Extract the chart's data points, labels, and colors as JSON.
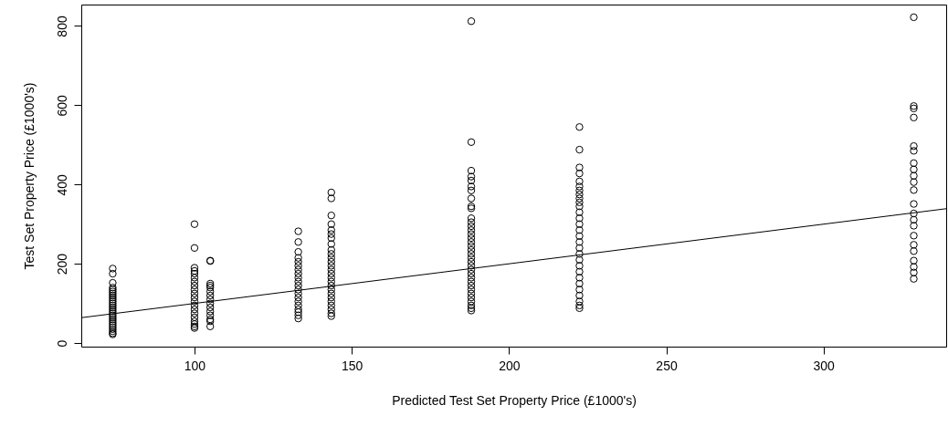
{
  "chart_data": {
    "type": "scatter",
    "xlabel": "Predicted Test Set Property Price (£1000's)",
    "ylabel": "Test Set Property Price (£1000's)",
    "xlim": [
      64,
      339
    ],
    "ylim": [
      -9,
      854
    ],
    "xticks": [
      100,
      150,
      200,
      250,
      300
    ],
    "yticks": [
      0,
      200,
      400,
      600,
      800
    ],
    "marker": "circle",
    "series": [
      {
        "color": "#000000",
        "x": [
          74,
          74,
          74,
          74,
          74,
          74,
          74,
          74,
          74,
          74,
          74,
          74,
          74,
          74,
          74,
          74,
          74,
          74,
          74,
          74,
          74,
          74,
          74,
          74,
          74,
          74,
          74,
          74,
          100,
          100,
          100,
          100,
          100,
          100,
          100,
          100,
          100,
          100,
          100,
          100,
          100,
          100,
          100,
          100,
          100,
          100,
          100,
          100,
          105,
          105,
          105,
          105,
          105,
          105,
          105,
          105,
          105,
          105,
          105,
          105,
          105,
          105,
          105,
          133,
          133,
          133,
          133,
          133,
          133,
          133,
          133,
          133,
          133,
          133,
          133,
          133,
          133,
          133,
          133,
          133,
          133,
          133,
          133,
          143.5,
          143.5,
          143.5,
          143.5,
          143.5,
          143.5,
          143.5,
          143.5,
          143.5,
          143.5,
          143.5,
          143.5,
          143.5,
          143.5,
          143.5,
          143.5,
          143.5,
          143.5,
          143.5,
          143.5,
          143.5,
          143.5,
          143.5,
          143.5,
          143.5,
          143.5,
          188,
          188,
          188,
          188,
          188,
          188,
          188,
          188,
          188,
          188,
          188,
          188,
          188,
          188,
          188,
          188,
          188,
          188,
          188,
          188,
          188,
          188,
          188,
          188,
          188,
          188,
          188,
          188,
          188,
          188,
          188,
          188,
          188,
          188,
          188,
          222.4,
          222.4,
          222.4,
          222.4,
          222.4,
          222.4,
          222.4,
          222.4,
          222.4,
          222.4,
          222.4,
          222.4,
          222.4,
          222.4,
          222.4,
          222.4,
          222.4,
          222.4,
          222.4,
          222.4,
          222.4,
          222.4,
          222.4,
          222.4,
          222.4,
          222.4,
          222.4,
          222.4,
          222.4,
          328.7,
          328.7,
          328.7,
          328.7,
          328.7,
          328.7,
          328.7,
          328.7,
          328.7,
          328.7,
          328.7,
          328.7,
          328.7,
          328.7,
          328.7,
          328.7,
          328.7,
          328.7,
          328.7,
          328.7,
          328.7,
          328.7
        ],
        "values": [
          188,
          175,
          152,
          140,
          135,
          130,
          125,
          120,
          115,
          110,
          105,
          100,
          95,
          90,
          85,
          80,
          75,
          70,
          65,
          60,
          55,
          50,
          45,
          40,
          35,
          30,
          25,
          22,
          300,
          240,
          190,
          182,
          175,
          165,
          155,
          145,
          135,
          125,
          115,
          105,
          95,
          85,
          75,
          65,
          55,
          48,
          42,
          38,
          208,
          207,
          150,
          145,
          140,
          130,
          120,
          110,
          100,
          90,
          80,
          70,
          60,
          55,
          42,
          282,
          255,
          230,
          215,
          205,
          195,
          185,
          175,
          165,
          155,
          145,
          135,
          125,
          115,
          105,
          95,
          85,
          78,
          70,
          62,
          380,
          365,
          322,
          300,
          285,
          275,
          265,
          250,
          235,
          225,
          215,
          205,
          195,
          185,
          175,
          165,
          155,
          145,
          135,
          125,
          115,
          105,
          95,
          85,
          75,
          68,
          812,
          507,
          435,
          420,
          410,
          395,
          385,
          365,
          345,
          340,
          315,
          305,
          295,
          285,
          275,
          265,
          255,
          245,
          235,
          225,
          215,
          205,
          195,
          185,
          175,
          165,
          155,
          145,
          135,
          125,
          115,
          105,
          95,
          88,
          82,
          545,
          488,
          443,
          428,
          408,
          395,
          385,
          375,
          365,
          355,
          345,
          330,
          315,
          300,
          285,
          270,
          255,
          240,
          225,
          210,
          195,
          180,
          165,
          150,
          135,
          120,
          105,
          95,
          88,
          822,
          598,
          592,
          569,
          497,
          485,
          454,
          438,
          422,
          406,
          386,
          351,
          327,
          311,
          296,
          271,
          248,
          232,
          208,
          192,
          178,
          162
        ]
      },
      {
        "type": "line",
        "marker": "none",
        "color": "#000000",
        "x": [
          64,
          339
        ],
        "values": [
          64,
          339
        ]
      }
    ]
  }
}
